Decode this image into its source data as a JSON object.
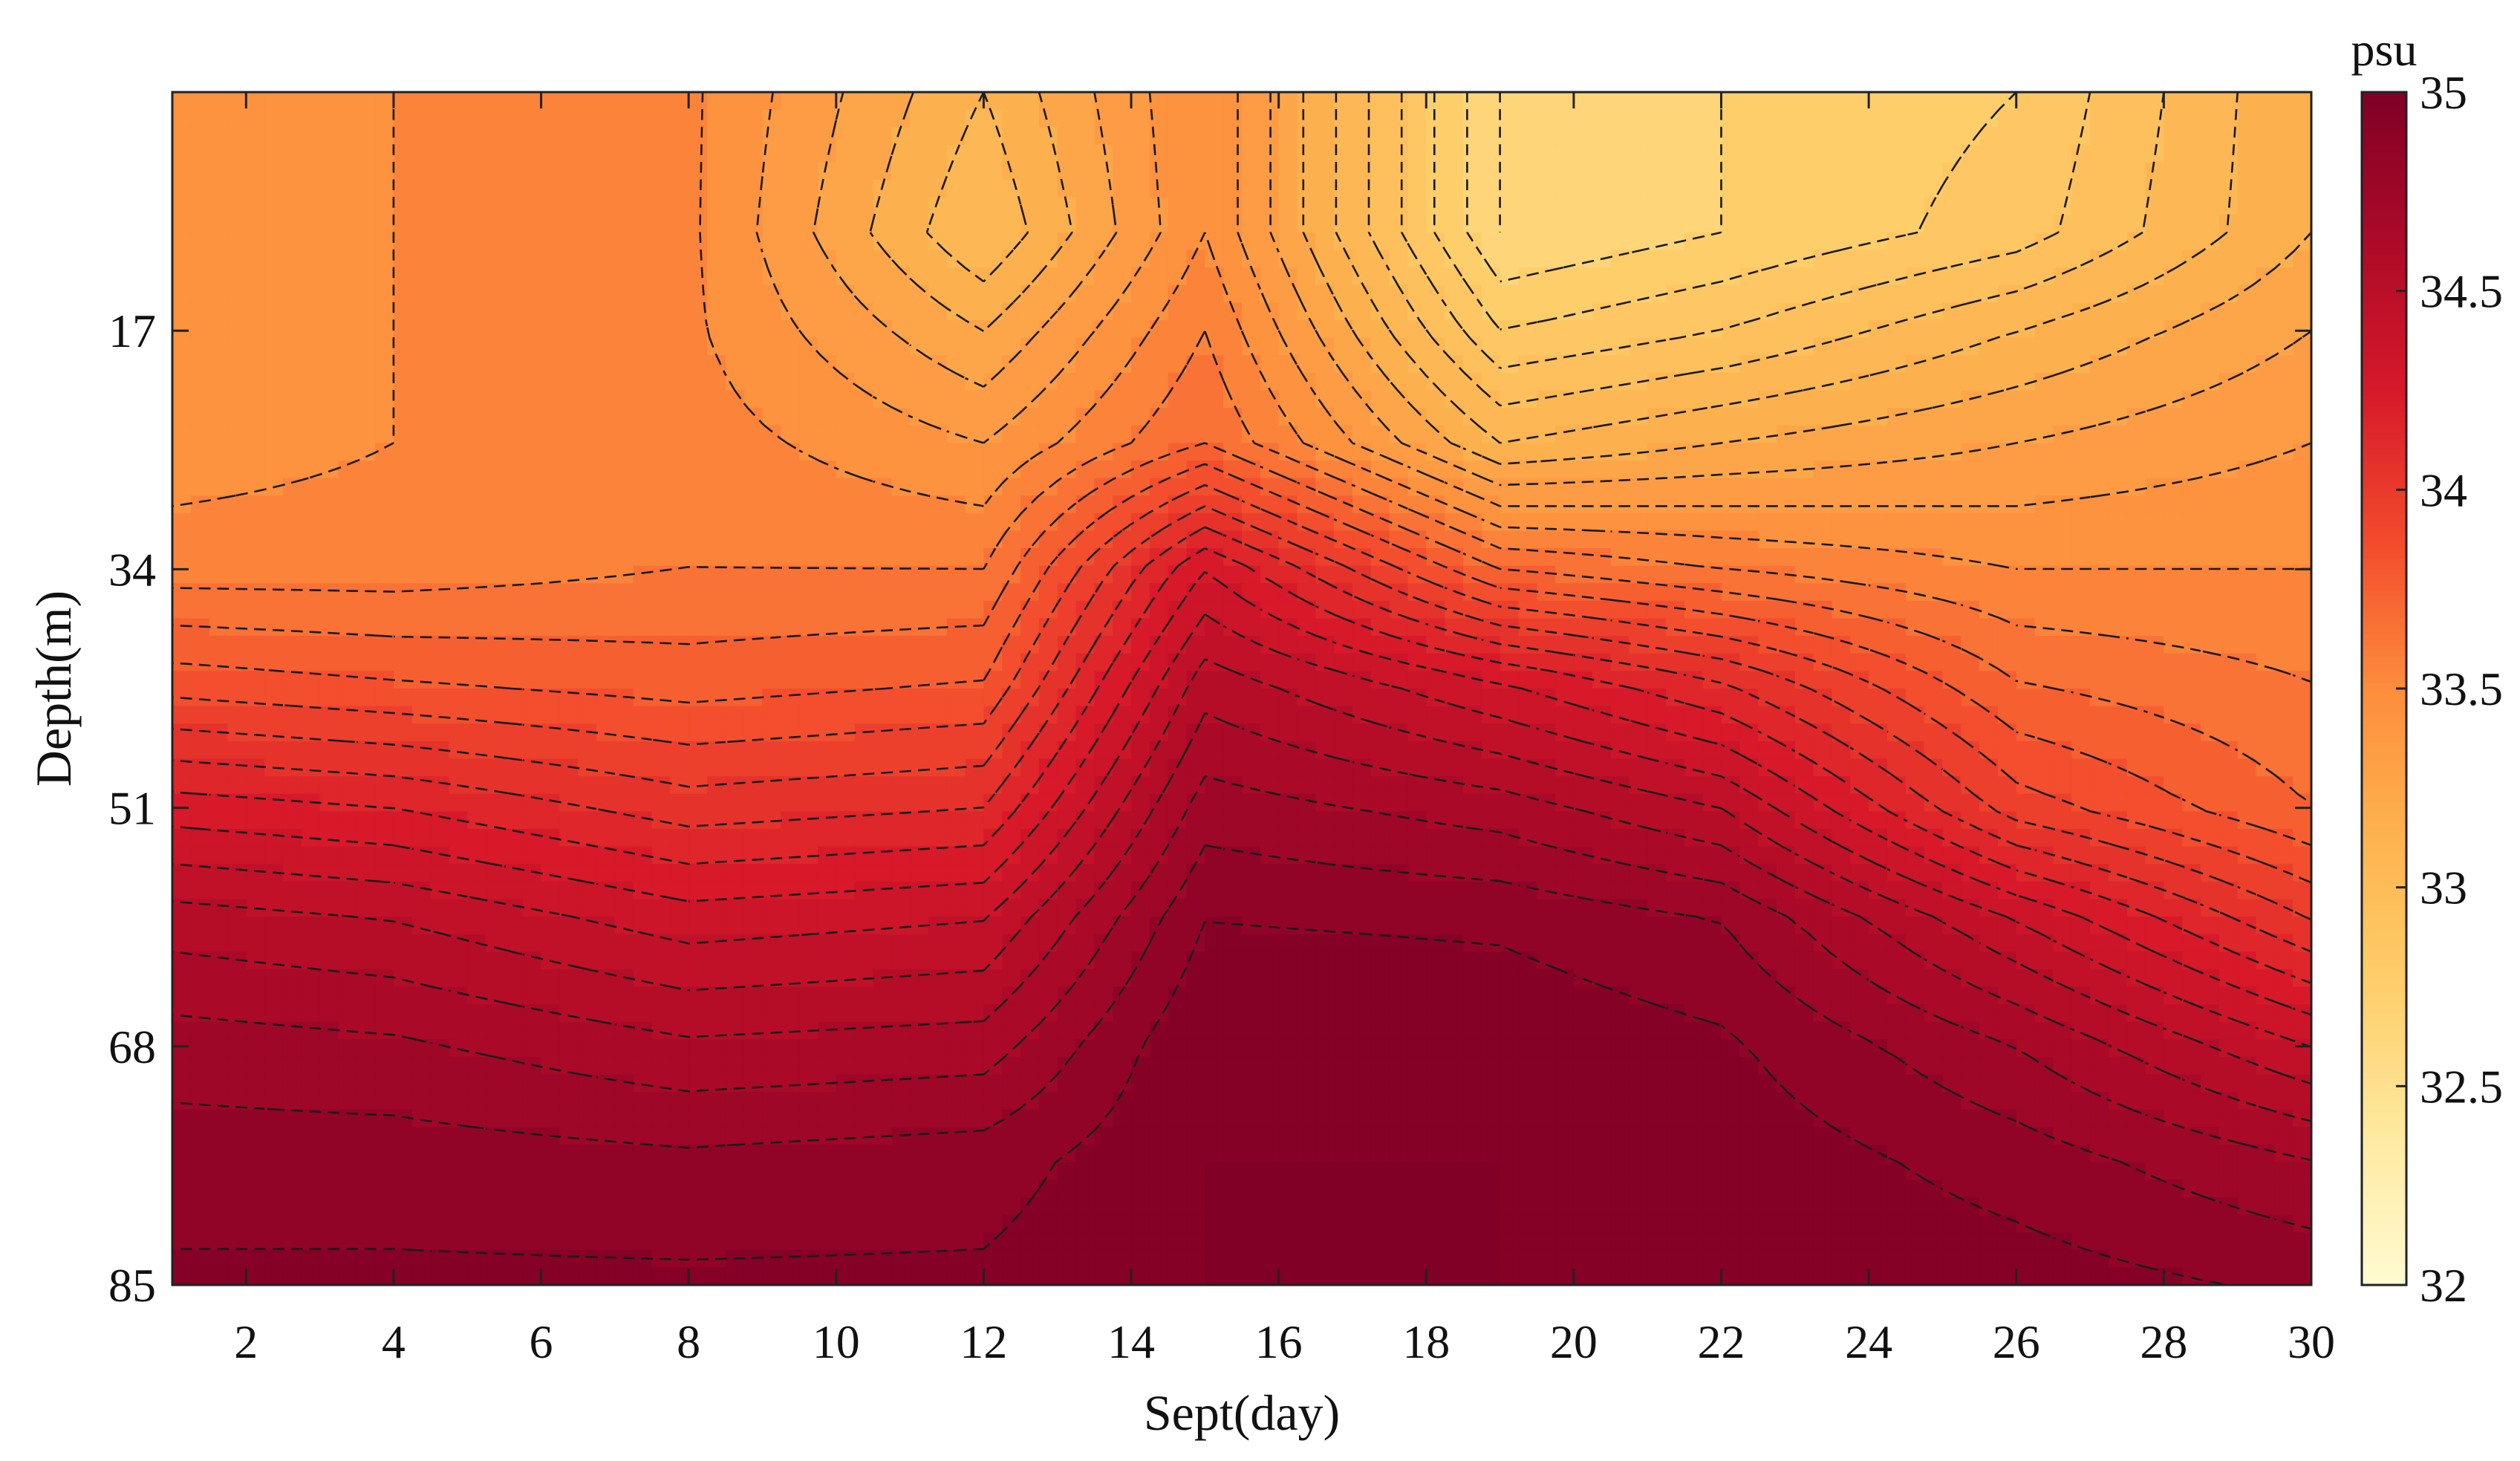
{
  "chart_data": {
    "type": "heatmap",
    "title": "",
    "xlabel": "Sept(day)",
    "ylabel": "Depth(m)",
    "xlim": [
      1,
      30
    ],
    "ylim": [
      85,
      0
    ],
    "x_ticks": [
      2,
      4,
      6,
      8,
      10,
      12,
      14,
      16,
      18,
      20,
      22,
      24,
      26,
      28,
      30
    ],
    "y_ticks": [
      17,
      34,
      51,
      68,
      85
    ],
    "x_tick_labels": [
      "2",
      "4",
      "6",
      "8",
      "10",
      "12",
      "14",
      "16",
      "18",
      "20",
      "22",
      "24",
      "26",
      "28",
      "30"
    ],
    "y_tick_labels": [
      "17",
      "34",
      "51",
      "68",
      "85"
    ],
    "colorbar": {
      "label": "psu",
      "range": [
        32,
        35
      ],
      "ticks": [
        32,
        32.5,
        33,
        33.5,
        34,
        34.5,
        35
      ],
      "tick_labels": [
        "32",
        "32.5",
        "33",
        "33.5",
        "34",
        "34.5",
        "35"
      ],
      "colormap": [
        "#fffbd2",
        "#fee9a0",
        "#fece6b",
        "#fdb34f",
        "#fd8d3c",
        "#f24a2c",
        "#d7192a",
        "#ad0a28",
        "#800026"
      ]
    },
    "contour_style": "dashed black",
    "depths": [
      0,
      10,
      17,
      25,
      34,
      42,
      51,
      59,
      68,
      76,
      85
    ],
    "days": [
      1,
      4,
      8,
      12,
      15,
      19,
      22,
      26,
      30
    ],
    "salinity": [
      [
        33.4,
        33.5,
        33.52,
        33.1,
        33.5,
        32.6,
        32.7,
        32.8,
        33.2
      ],
      [
        33.4,
        33.5,
        33.52,
        33.0,
        33.5,
        32.6,
        32.7,
        32.85,
        33.2
      ],
      [
        33.4,
        33.5,
        33.52,
        33.2,
        33.6,
        32.8,
        32.9,
        33.1,
        33.3
      ],
      [
        33.45,
        33.5,
        33.55,
        33.4,
        33.7,
        33.1,
        33.2,
        33.3,
        33.4
      ],
      [
        33.55,
        33.55,
        33.6,
        33.6,
        34.3,
        33.7,
        33.6,
        33.5,
        33.5
      ],
      [
        33.85,
        33.8,
        33.75,
        33.8,
        34.55,
        34.3,
        34.1,
        33.7,
        33.6
      ],
      [
        34.25,
        34.2,
        34.05,
        34.1,
        34.75,
        34.65,
        34.5,
        33.95,
        33.7
      ],
      [
        34.55,
        34.5,
        34.35,
        34.4,
        34.9,
        34.88,
        34.8,
        34.4,
        34.0
      ],
      [
        34.75,
        34.72,
        34.62,
        34.65,
        35.0,
        34.98,
        34.92,
        34.7,
        34.4
      ],
      [
        34.85,
        34.85,
        34.82,
        34.85,
        35.0,
        35.0,
        34.97,
        34.85,
        34.7
      ],
      [
        34.92,
        34.92,
        34.92,
        34.92,
        35.0,
        35.0,
        35.0,
        34.95,
        34.88
      ]
    ],
    "contour_levels_step": 0.1
  }
}
